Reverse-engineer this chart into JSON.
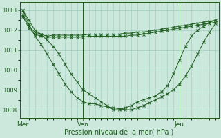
{
  "title": "",
  "xlabel": "Pression niveau de la mer( hPa )",
  "ylabel": "",
  "bg_color": "#cce8dd",
  "plot_bg_color": "#cce8dd",
  "line_color": "#1a5c1a",
  "grid_color": "#99ccbb",
  "tick_color": "#1a5c1a",
  "ylim": [
    1007.6,
    1013.4
  ],
  "yticks": [
    1008,
    1009,
    1010,
    1011,
    1012,
    1013
  ],
  "xtick_labels": [
    "Mer",
    "Ven",
    "Jeu"
  ],
  "xtick_positions": [
    0,
    10,
    26
  ],
  "vline_positions": [
    0,
    10,
    26
  ],
  "series": [
    [
      1013.0,
      1012.5,
      1012.0,
      1011.8,
      1011.5,
      1011.2,
      1010.8,
      1010.3,
      1009.8,
      1009.4,
      1009.0,
      1008.8,
      1008.6,
      1008.4,
      1008.2,
      1008.0,
      1008.0,
      1008.1,
      1008.2,
      1008.4,
      1008.5,
      1008.6,
      1008.7,
      1008.9,
      1009.2,
      1009.8,
      1010.5,
      1011.2,
      1011.7,
      1012.0,
      1012.2,
      1012.4,
      1012.5
    ],
    [
      1012.8,
      1012.2,
      1011.9,
      1011.8,
      1011.7,
      1011.75,
      1011.75,
      1011.75,
      1011.75,
      1011.75,
      1011.75,
      1011.8,
      1011.8,
      1011.8,
      1011.8,
      1011.8,
      1011.8,
      1011.85,
      1011.85,
      1011.9,
      1011.9,
      1011.95,
      1012.0,
      1012.05,
      1012.1,
      1012.15,
      1012.2,
      1012.25,
      1012.3,
      1012.35,
      1012.4,
      1012.45,
      1012.5
    ],
    [
      1012.7,
      1012.1,
      1011.8,
      1011.7,
      1011.65,
      1011.65,
      1011.65,
      1011.65,
      1011.65,
      1011.65,
      1011.65,
      1011.7,
      1011.7,
      1011.7,
      1011.7,
      1011.7,
      1011.7,
      1011.7,
      1011.75,
      1011.75,
      1011.8,
      1011.85,
      1011.9,
      1011.95,
      1012.0,
      1012.05,
      1012.1,
      1012.15,
      1012.2,
      1012.25,
      1012.3,
      1012.35,
      1012.4
    ],
    [
      1013.0,
      1012.3,
      1011.7,
      1011.3,
      1010.8,
      1010.3,
      1009.8,
      1009.3,
      1008.9,
      1008.6,
      1008.4,
      1008.3,
      1008.3,
      1008.2,
      1008.15,
      1008.1,
      1008.05,
      1008.0,
      1008.0,
      1008.1,
      1008.2,
      1008.35,
      1008.5,
      1008.65,
      1008.8,
      1009.0,
      1009.3,
      1009.7,
      1010.2,
      1010.8,
      1011.4,
      1011.9,
      1012.35
    ]
  ],
  "n_points": 33
}
